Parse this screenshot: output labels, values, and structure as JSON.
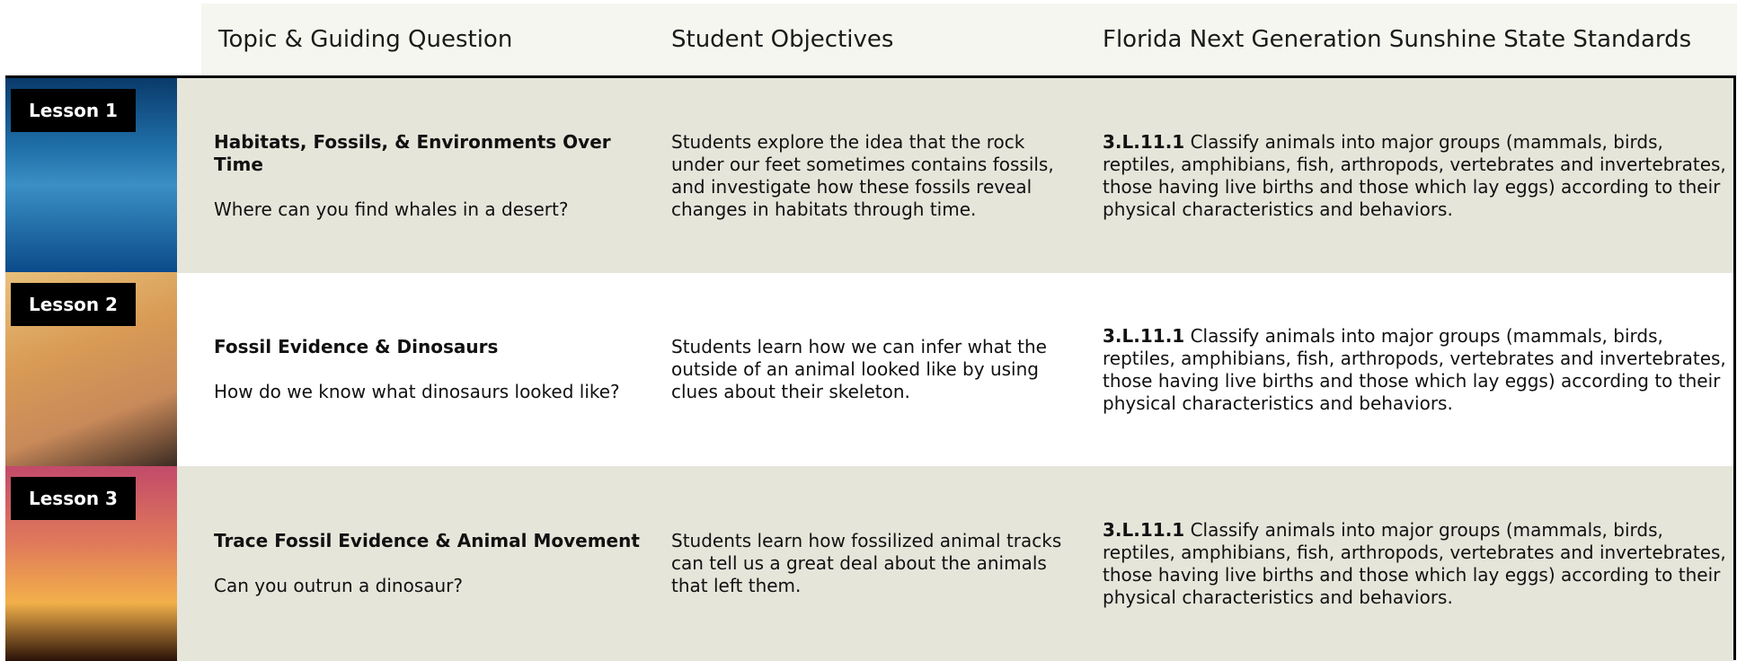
{
  "header": {
    "columns": [
      "Topic & Guiding Question",
      "Student Objectives",
      "Florida Next Generation Sunshine State Standards"
    ]
  },
  "rows": [
    {
      "lesson": "Lesson 1",
      "title": "Habitats, Fossils, & Environments Over Time",
      "question": "Where can you find whales in a desert?",
      "objective": "Students explore the idea that the rock under our feet sometimes contains fossils, and investigate how these fossils reveal changes in habitats through time.",
      "standard_code": "3.L.11.1",
      "standard_text": "Classify animals into major groups (mammals, birds, reptiles, amphibians, fish, arthropods, vertebrates and invertebrates, those having live births and those which lay eggs) according to their physical characteristics and behaviors."
    },
    {
      "lesson": "Lesson 2",
      "title": "Fossil Evidence & Dinosaurs",
      "question": "How do we know what dinosaurs looked like?",
      "objective": "Students learn how we can infer what the outside of an animal looked like by using clues about their skeleton.",
      "standard_code": "3.L.11.1",
      "standard_text": "Classify animals into major groups (mammals, birds, reptiles, amphibians, fish, arthropods, vertebrates and invertebrates, those having live births and those which lay eggs) according to their physical characteristics and behaviors."
    },
    {
      "lesson": "Lesson 3",
      "title": "Trace Fossil Evidence & Animal Movement",
      "question": "Can you outrun a dinosaur?",
      "objective": "Students learn how fossilized animal tracks can tell us a great deal about the animals that left them.",
      "standard_code": "3.L.11.1",
      "standard_text": "Classify animals into major groups (mammals, birds, reptiles, amphibians, fish, arthropods, vertebrates and invertebrates, those having live births and those which lay eggs) according to their physical characteristics and behaviors."
    }
  ]
}
